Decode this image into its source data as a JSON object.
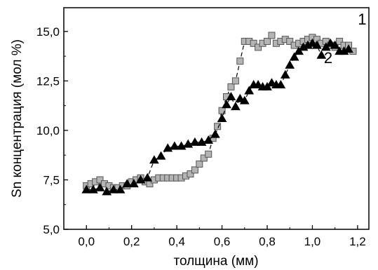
{
  "chart_data": {
    "type": "scatter",
    "title": "",
    "xlabel": "толщина  (мм)",
    "ylabel": "Sn концентрация (мол %)",
    "xlim": [
      -0.1,
      1.25
    ],
    "ylim": [
      5.0,
      16.2
    ],
    "x_ticks": [
      "0,0",
      "0,2",
      "0,4",
      "0,6",
      "0,8",
      "1,0",
      "1,2"
    ],
    "x_tick_values": [
      0.0,
      0.2,
      0.4,
      0.6,
      0.8,
      1.0,
      1.2
    ],
    "y_ticks": [
      "5,0",
      "7,5",
      "10,0",
      "12,5",
      "15,0"
    ],
    "y_tick_values": [
      5.0,
      7.5,
      10.0,
      12.5,
      15.0
    ],
    "grid": false,
    "legend": "none",
    "series": [
      {
        "name": "1",
        "marker": "square",
        "color": "#b4b4b4",
        "line": "dashed",
        "x": [
          0.0,
          0.02,
          0.04,
          0.06,
          0.08,
          0.1,
          0.12,
          0.14,
          0.16,
          0.18,
          0.2,
          0.22,
          0.24,
          0.26,
          0.28,
          0.3,
          0.32,
          0.34,
          0.36,
          0.38,
          0.4,
          0.42,
          0.44,
          0.46,
          0.48,
          0.5,
          0.52,
          0.54,
          0.56,
          0.58,
          0.6,
          0.62,
          0.64,
          0.66,
          0.68,
          0.7,
          0.72,
          0.74,
          0.76,
          0.78,
          0.8,
          0.82,
          0.84,
          0.86,
          0.88,
          0.9,
          0.92,
          0.94,
          0.96,
          0.98,
          1.0,
          1.02,
          1.04,
          1.06,
          1.08,
          1.1,
          1.12,
          1.14,
          1.16,
          1.18
        ],
        "y": [
          7.2,
          7.3,
          7.4,
          7.5,
          7.3,
          7.2,
          7.1,
          7.1,
          7.2,
          7.2,
          7.4,
          7.5,
          7.6,
          7.4,
          7.3,
          7.5,
          7.6,
          7.6,
          7.6,
          7.6,
          7.6,
          7.6,
          7.7,
          7.8,
          8.0,
          8.3,
          8.6,
          8.8,
          9.6,
          10.2,
          11.0,
          11.7,
          12.2,
          12.5,
          13.5,
          14.5,
          14.5,
          14.4,
          14.2,
          14.4,
          14.5,
          14.8,
          14.4,
          14.5,
          14.6,
          14.5,
          14.3,
          14.4,
          14.5,
          14.6,
          14.7,
          14.6,
          14.4,
          14.5,
          14.3,
          14.2,
          14.5,
          14.3,
          14.3,
          14.0
        ]
      },
      {
        "name": "2",
        "marker": "triangle",
        "color": "#000000",
        "line": "dashed",
        "x": [
          0.0,
          0.03,
          0.06,
          0.09,
          0.12,
          0.15,
          0.18,
          0.21,
          0.24,
          0.27,
          0.3,
          0.33,
          0.36,
          0.39,
          0.42,
          0.45,
          0.48,
          0.51,
          0.54,
          0.57,
          0.6,
          0.62,
          0.64,
          0.66,
          0.68,
          0.7,
          0.72,
          0.74,
          0.76,
          0.78,
          0.8,
          0.82,
          0.84,
          0.86,
          0.88,
          0.9,
          0.92,
          0.94,
          0.96,
          0.98,
          1.0,
          1.02,
          1.04,
          1.06,
          1.08,
          1.1,
          1.12,
          1.14,
          1.16
        ],
        "y": [
          7.0,
          7.0,
          7.1,
          6.9,
          7.0,
          7.0,
          7.3,
          7.3,
          7.5,
          7.6,
          8.5,
          8.7,
          9.1,
          9.2,
          9.2,
          9.3,
          9.4,
          9.4,
          9.5,
          9.8,
          10.6,
          11.3,
          11.7,
          11.2,
          11.6,
          11.5,
          12.0,
          12.3,
          12.3,
          12.2,
          12.2,
          12.4,
          12.3,
          12.3,
          12.8,
          13.3,
          13.7,
          14.0,
          14.2,
          14.3,
          14.4,
          14.3,
          13.8,
          14.2,
          14.4,
          14.3,
          14.0,
          14.0,
          14.1
        ]
      }
    ],
    "annotations": [
      {
        "text": "1",
        "x": 1.22,
        "y": 15.35
      },
      {
        "text": "2",
        "x": 1.07,
        "y": 13.4
      }
    ]
  }
}
